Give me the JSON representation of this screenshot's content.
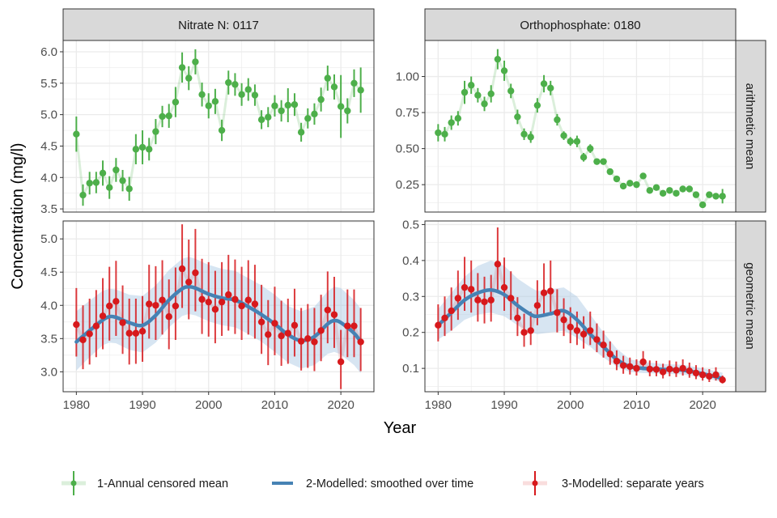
{
  "chart_data": {
    "type": "line",
    "ylabel": "Concentration (mg/l)",
    "xlabel": "Year",
    "column_strips": [
      "Nitrate N: 0117",
      "Orthophosphate: 0180"
    ],
    "row_strips": [
      "arithmetic mean",
      "geometric mean"
    ],
    "x_ticks": [
      1980,
      1990,
      2000,
      2010,
      2020
    ],
    "xlim": [
      1978,
      2025
    ],
    "colors": {
      "annual": "#4daf4a",
      "smooth": "#4682b4",
      "band": "#a6c5e3",
      "separate": "#d7191c"
    },
    "legend": {
      "position": "bottom",
      "entries": [
        {
          "key": "annual",
          "label": "1-Annual censored mean"
        },
        {
          "key": "smooth",
          "label": "2-Modelled: smoothed over time"
        },
        {
          "key": "separate",
          "label": "3-Modelled: separate years"
        }
      ]
    },
    "years": [
      1980,
      1981,
      1982,
      1983,
      1984,
      1985,
      1986,
      1987,
      1988,
      1989,
      1990,
      1991,
      1992,
      1993,
      1994,
      1995,
      1996,
      1997,
      1998,
      1999,
      2000,
      2001,
      2002,
      2003,
      2004,
      2005,
      2006,
      2007,
      2008,
      2009,
      2010,
      2011,
      2012,
      2013,
      2014,
      2015,
      2016,
      2017,
      2018,
      2019,
      2020,
      2021,
      2022,
      2023
    ],
    "panels": [
      {
        "id": "nitrate-arithmetic",
        "column": "Nitrate N: 0117",
        "row": "arithmetic mean",
        "ylim": [
          3.45,
          6.18
        ],
        "y_ticks": [
          "3.5",
          "4.0",
          "4.5",
          "5.0",
          "5.5",
          "6.0"
        ],
        "y_tick_values": [
          3.5,
          4.0,
          4.5,
          5.0,
          5.5,
          6.0
        ],
        "annual_mean": [
          4.69,
          3.72,
          3.91,
          3.92,
          4.07,
          3.84,
          4.12,
          3.95,
          3.82,
          4.45,
          4.48,
          4.45,
          4.73,
          4.97,
          4.98,
          5.2,
          5.75,
          5.58,
          5.84,
          5.32,
          5.14,
          5.21,
          4.75,
          5.51,
          5.48,
          5.32,
          5.4,
          5.31,
          4.92,
          4.96,
          5.14,
          5.06,
          5.15,
          5.16,
          4.72,
          4.94,
          5.01,
          5.24,
          5.58,
          5.44,
          5.13,
          5.06,
          5.5,
          5.39
        ],
        "annual_err": [
          0.28,
          0.17,
          0.18,
          0.17,
          0.2,
          0.18,
          0.19,
          0.17,
          0.19,
          0.24,
          0.27,
          0.18,
          0.2,
          0.17,
          0.19,
          0.24,
          0.24,
          0.19,
          0.2,
          0.19,
          0.2,
          0.2,
          0.17,
          0.19,
          0.18,
          0.18,
          0.18,
          0.17,
          0.15,
          0.16,
          0.17,
          0.17,
          0.27,
          0.18,
          0.15,
          0.16,
          0.17,
          0.19,
          0.2,
          0.2,
          0.5,
          0.2,
          0.22,
          0.36
        ]
      },
      {
        "id": "ortho-arithmetic",
        "column": "Orthophosphate: 0180",
        "row": "arithmetic mean",
        "ylim": [
          0.06,
          1.25
        ],
        "y_ticks": [
          "0.25",
          "0.50",
          "0.75",
          "1.00"
        ],
        "y_tick_values": [
          0.25,
          0.5,
          0.75,
          1.0
        ],
        "annual_mean": [
          0.61,
          0.6,
          0.68,
          0.71,
          0.89,
          0.94,
          0.87,
          0.81,
          0.88,
          1.12,
          1.04,
          0.9,
          0.72,
          0.6,
          0.58,
          0.8,
          0.95,
          0.92,
          0.7,
          0.59,
          0.55,
          0.55,
          0.44,
          0.5,
          0.41,
          0.41,
          0.34,
          0.29,
          0.24,
          0.26,
          0.25,
          0.31,
          0.21,
          0.23,
          0.19,
          0.21,
          0.19,
          0.22,
          0.22,
          0.18,
          0.11,
          0.18,
          0.17,
          0.17
        ],
        "annual_err": [
          0.06,
          0.05,
          0.05,
          0.05,
          0.08,
          0.06,
          0.05,
          0.05,
          0.06,
          0.07,
          0.07,
          0.05,
          0.05,
          0.04,
          0.04,
          0.05,
          0.06,
          0.05,
          0.04,
          0.03,
          0.03,
          0.04,
          0.03,
          0.03,
          0.02,
          0.02,
          0.02,
          0.02,
          0.02,
          0.02,
          0.02,
          0.02,
          0.02,
          0.02,
          0.02,
          0.02,
          0.02,
          0.02,
          0.02,
          0.02,
          0.02,
          0.02,
          0.02,
          0.05
        ]
      },
      {
        "id": "nitrate-geometric",
        "column": "Nitrate N: 0117",
        "row": "geometric mean",
        "ylim": [
          2.7,
          5.27
        ],
        "y_ticks": [
          "3.0",
          "3.5",
          "4.0",
          "4.5",
          "5.0"
        ],
        "y_tick_values": [
          3.0,
          3.5,
          4.0,
          4.5,
          5.0
        ],
        "separate_years": [
          3.71,
          3.48,
          3.57,
          3.69,
          3.84,
          3.99,
          4.06,
          3.74,
          3.58,
          3.58,
          3.61,
          4.02,
          4.0,
          4.08,
          3.83,
          3.99,
          4.55,
          4.35,
          4.49,
          4.09,
          4.05,
          3.94,
          4.05,
          4.16,
          4.09,
          3.99,
          4.08,
          4.02,
          3.75,
          3.56,
          3.73,
          3.54,
          3.58,
          3.7,
          3.46,
          3.5,
          3.45,
          3.62,
          3.93,
          3.86,
          3.15,
          3.69,
          3.69,
          3.45
        ],
        "separate_lo": [
          3.23,
          3.04,
          3.11,
          3.22,
          3.34,
          3.47,
          3.54,
          3.27,
          3.11,
          3.12,
          3.15,
          3.5,
          3.48,
          3.56,
          3.34,
          3.48,
          3.96,
          3.79,
          3.91,
          3.57,
          3.53,
          3.43,
          3.54,
          3.62,
          3.57,
          3.48,
          3.56,
          3.5,
          3.27,
          3.1,
          3.25,
          3.09,
          3.12,
          3.23,
          3.02,
          3.06,
          3.01,
          3.16,
          3.43,
          3.36,
          2.74,
          3.22,
          3.22,
          3.01
        ],
        "separate_hi": [
          4.26,
          4.0,
          4.1,
          4.23,
          4.41,
          4.58,
          4.67,
          4.3,
          4.1,
          4.1,
          4.14,
          4.61,
          4.59,
          4.68,
          4.39,
          4.57,
          5.22,
          4.99,
          5.15,
          4.7,
          4.65,
          4.52,
          4.65,
          4.76,
          4.69,
          4.58,
          4.68,
          4.61,
          4.31,
          4.08,
          4.28,
          4.07,
          4.1,
          4.25,
          3.96,
          4.02,
          3.96,
          4.16,
          4.51,
          4.43,
          3.63,
          4.24,
          4.24,
          3.96
        ],
        "smooth_x": [
          1980,
          1982,
          1984,
          1985,
          1986,
          1988,
          1990,
          1992,
          1994,
          1996,
          1997,
          1998,
          2000,
          2002,
          2004,
          2006,
          2008,
          2010,
          2012,
          2014,
          2016,
          2018,
          2019,
          2020,
          2022,
          2023
        ],
        "smooth": [
          3.45,
          3.62,
          3.78,
          3.83,
          3.82,
          3.74,
          3.7,
          3.85,
          4.08,
          4.25,
          4.28,
          4.26,
          4.17,
          4.11,
          4.08,
          3.98,
          3.86,
          3.72,
          3.56,
          3.47,
          3.53,
          3.72,
          3.77,
          3.74,
          3.58,
          3.45
        ],
        "smooth_lo": [
          3.02,
          3.22,
          3.4,
          3.44,
          3.43,
          3.33,
          3.29,
          3.44,
          3.67,
          3.84,
          3.87,
          3.85,
          3.76,
          3.7,
          3.67,
          3.57,
          3.45,
          3.3,
          3.14,
          3.05,
          3.1,
          3.27,
          3.3,
          3.26,
          3.1,
          2.98
        ],
        "smooth_hi": [
          3.91,
          4.07,
          4.22,
          4.25,
          4.24,
          4.16,
          4.14,
          4.3,
          4.53,
          4.7,
          4.73,
          4.7,
          4.61,
          4.55,
          4.52,
          4.41,
          4.3,
          4.16,
          3.99,
          3.91,
          3.98,
          4.21,
          4.28,
          4.26,
          4.08,
          3.95
        ]
      },
      {
        "id": "ortho-geometric",
        "column": "Orthophosphate: 0180",
        "row": "geometric mean",
        "ylim": [
          0.035,
          0.51
        ],
        "y_ticks": [
          "0.1",
          "0.2",
          "0.3",
          "0.4",
          "0.5"
        ],
        "y_tick_values": [
          0.1,
          0.2,
          0.3,
          0.4,
          0.5
        ],
        "separate_years": [
          0.22,
          0.24,
          0.26,
          0.295,
          0.325,
          0.32,
          0.29,
          0.285,
          0.29,
          0.39,
          0.325,
          0.295,
          0.24,
          0.2,
          0.205,
          0.275,
          0.31,
          0.315,
          0.255,
          0.235,
          0.215,
          0.205,
          0.195,
          0.205,
          0.18,
          0.165,
          0.14,
          0.12,
          0.108,
          0.105,
          0.1,
          0.118,
          0.098,
          0.097,
          0.09,
          0.098,
          0.095,
          0.1,
          0.093,
          0.087,
          0.082,
          0.078,
          0.082,
          0.068
        ],
        "separate_lo": [
          0.175,
          0.19,
          0.205,
          0.235,
          0.26,
          0.255,
          0.23,
          0.225,
          0.23,
          0.31,
          0.26,
          0.235,
          0.19,
          0.16,
          0.165,
          0.22,
          0.25,
          0.25,
          0.2,
          0.19,
          0.17,
          0.165,
          0.155,
          0.165,
          0.145,
          0.13,
          0.11,
          0.095,
          0.085,
          0.083,
          0.08,
          0.095,
          0.078,
          0.078,
          0.072,
          0.078,
          0.076,
          0.08,
          0.074,
          0.07,
          0.066,
          0.062,
          0.066,
          0.058
        ],
        "separate_hi": [
          0.278,
          0.3,
          0.325,
          0.372,
          0.41,
          0.4,
          0.365,
          0.355,
          0.36,
          0.492,
          0.408,
          0.37,
          0.298,
          0.252,
          0.258,
          0.345,
          0.392,
          0.4,
          0.32,
          0.295,
          0.27,
          0.258,
          0.245,
          0.258,
          0.225,
          0.205,
          0.175,
          0.15,
          0.135,
          0.13,
          0.125,
          0.148,
          0.122,
          0.121,
          0.113,
          0.122,
          0.119,
          0.125,
          0.116,
          0.109,
          0.103,
          0.098,
          0.103,
          0.08
        ],
        "smooth_x": [
          1980,
          1982,
          1984,
          1986,
          1988,
          1990,
          1992,
          1994,
          1995,
          1997,
          1999,
          2001,
          2003,
          2005,
          2007,
          2009,
          2011,
          2014,
          2017,
          2020,
          2023
        ],
        "smooth": [
          0.22,
          0.255,
          0.29,
          0.31,
          0.318,
          0.305,
          0.275,
          0.25,
          0.245,
          0.252,
          0.26,
          0.235,
          0.195,
          0.16,
          0.125,
          0.105,
          0.1,
          0.097,
          0.095,
          0.085,
          0.072
        ],
        "smooth_lo": [
          0.18,
          0.205,
          0.235,
          0.25,
          0.255,
          0.245,
          0.22,
          0.2,
          0.195,
          0.2,
          0.205,
          0.185,
          0.16,
          0.13,
          0.105,
          0.09,
          0.087,
          0.085,
          0.083,
          0.074,
          0.062
        ],
        "smooth_hi": [
          0.265,
          0.31,
          0.355,
          0.385,
          0.4,
          0.385,
          0.35,
          0.325,
          0.315,
          0.32,
          0.325,
          0.3,
          0.25,
          0.2,
          0.155,
          0.125,
          0.118,
          0.112,
          0.11,
          0.1,
          0.088
        ]
      }
    ]
  }
}
